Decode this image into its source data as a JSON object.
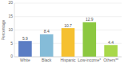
{
  "chart_data": {
    "type": "bar",
    "categories": [
      "White",
      "Black",
      "Hispanic",
      "Low-income*",
      "Others**"
    ],
    "values": [
      5.9,
      8.4,
      10.7,
      12.9,
      4.4
    ],
    "colors": [
      "#5b7dc4",
      "#85bcd8",
      "#f5c030",
      "#8cc840",
      "#a8d84a"
    ],
    "ylabel": "Percentage",
    "ylim": [
      0,
      20
    ],
    "yticks": [
      0,
      5,
      10,
      15,
      20
    ],
    "grid": true,
    "data_labels": true
  }
}
